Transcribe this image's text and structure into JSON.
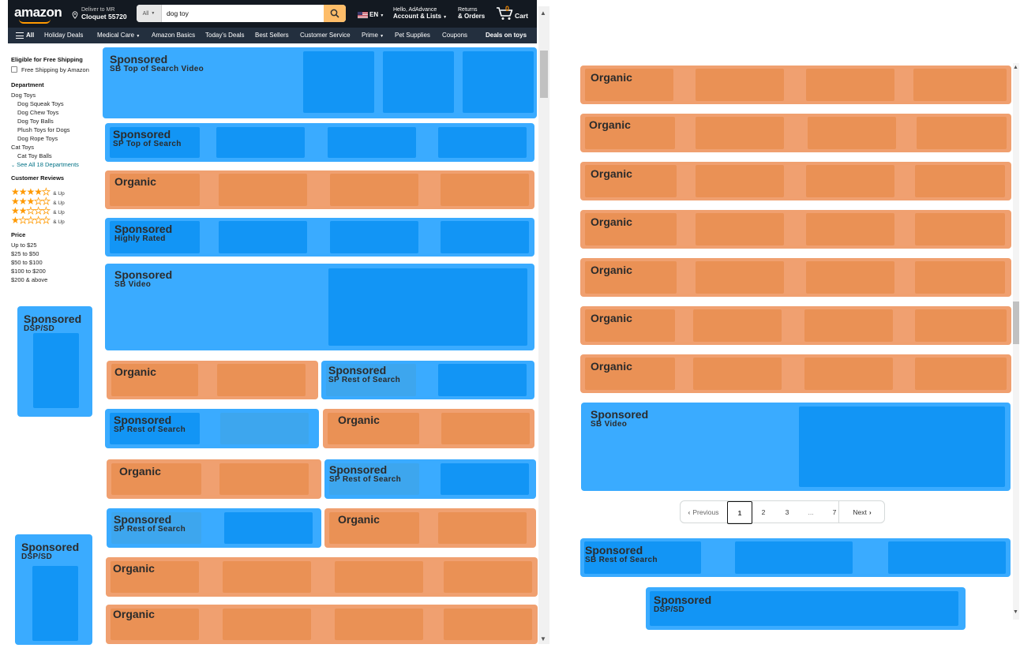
{
  "header": {
    "logo": "amazon",
    "deliver_line1": "Deliver to MR",
    "deliver_line2": "Cloquet 55720",
    "search_category": "All",
    "search_value": "dog toy",
    "language": "EN",
    "account_line1": "Hello, AdAdvance",
    "account_line2": "Account & Lists",
    "returns_line1": "Returns",
    "returns_line2": "& Orders",
    "cart_count": "0",
    "cart_label": "Cart"
  },
  "nav": {
    "all": "All",
    "items": [
      "Holiday Deals",
      "Medical Care",
      "Amazon Basics",
      "Today's Deals",
      "Best Sellers",
      "Customer Service",
      "Prime",
      "Pet Supplies",
      "Coupons"
    ],
    "promo": "Deals on toys"
  },
  "sidebar": {
    "shipping_heading": "Eligible for Free Shipping",
    "shipping_option": "Free Shipping by Amazon",
    "department_heading": "Department",
    "departments": [
      "Dog Toys",
      "Dog Squeak Toys",
      "Dog Chew Toys",
      "Dog Toy Balls",
      "Plush Toys for Dogs",
      "Dog Rope Toys",
      "Cat Toys",
      "Cat Toy Balls"
    ],
    "see_all": "See All 18 Departments",
    "reviews_heading": "Customer Reviews",
    "ratings": [
      4,
      3,
      2,
      1
    ],
    "and_up": "& Up",
    "price_heading": "Price",
    "prices": [
      "Up to $25",
      "$25 to $50",
      "$50 to $100",
      "$100 to $200",
      "$200 & above"
    ]
  },
  "labels": {
    "sponsored": "Sponsored",
    "organic": "Organic",
    "sb_top_video": "SB Top of Search Video",
    "sp_top": "SP Top of Search",
    "highly_rated": "Highly Rated",
    "sb_video": "SB Video",
    "dsp_sd": "DSP/SD",
    "sp_rest": "SP Rest of Search",
    "sb_rest": "SB Rest of Search"
  },
  "pagination": {
    "previous": "Previous",
    "pages": [
      "1",
      "2",
      "3",
      "...",
      "7"
    ],
    "next": "Next",
    "current": "1"
  },
  "colors": {
    "sponsored": "#3aabff",
    "organic": "#f0a070",
    "header": "#131921",
    "subnav": "#232f3e",
    "search_button": "#febd69"
  }
}
